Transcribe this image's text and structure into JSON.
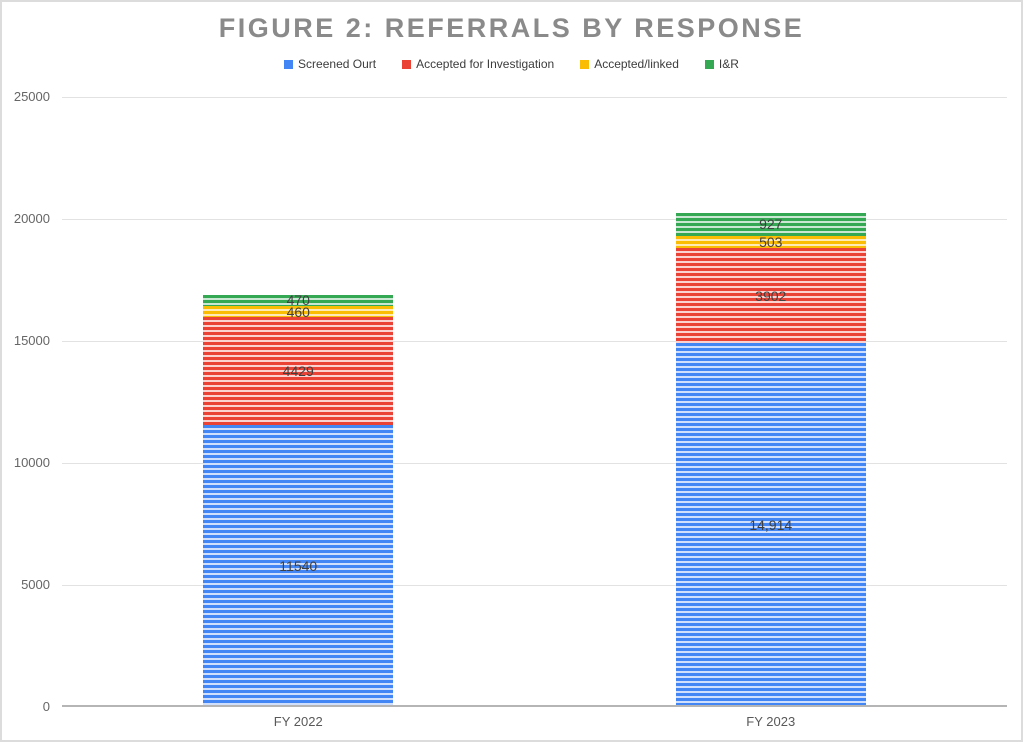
{
  "figure": {
    "title": "FIGURE 2: REFERRALS BY RESPONSE"
  },
  "chart_data": {
    "type": "bar",
    "stacked": true,
    "title": "FIGURE 2: REFERRALS BY RESPONSE",
    "legend_position": "top",
    "grid": true,
    "categories": [
      "FY 2022",
      "FY 2023"
    ],
    "series": [
      {
        "name": "Screened Ourt",
        "color": "#4285f4",
        "stripe_light": "#cfdffc",
        "values": [
          11540,
          14914
        ],
        "labels": [
          "11540",
          "14,914"
        ]
      },
      {
        "name": "Accepted for Investigation",
        "color": "#ea4335",
        "stripe_light": "#fbd2cf",
        "values": [
          4429,
          3902
        ],
        "labels": [
          "4429",
          "3902"
        ]
      },
      {
        "name": "Accepted/linked",
        "color": "#fbbc04",
        "stripe_light": "#fdeab4",
        "values": [
          460,
          503
        ],
        "labels": [
          "460",
          "503"
        ]
      },
      {
        "name": "I&R",
        "color": "#34a853",
        "stripe_light": "#c9e7d3",
        "values": [
          470,
          927
        ],
        "labels": [
          "470",
          "927"
        ]
      }
    ],
    "y_axis": {
      "min": 0,
      "max": 25000,
      "ticks": [
        0,
        5000,
        10000,
        15000,
        20000,
        25000
      ]
    },
    "totals": [
      16899,
      20246
    ],
    "colors": {
      "title_text": "#8a8a8a",
      "axis_line": "#b5b5b5",
      "gridline": "#e2e2e2",
      "label_text": "#404040"
    }
  }
}
